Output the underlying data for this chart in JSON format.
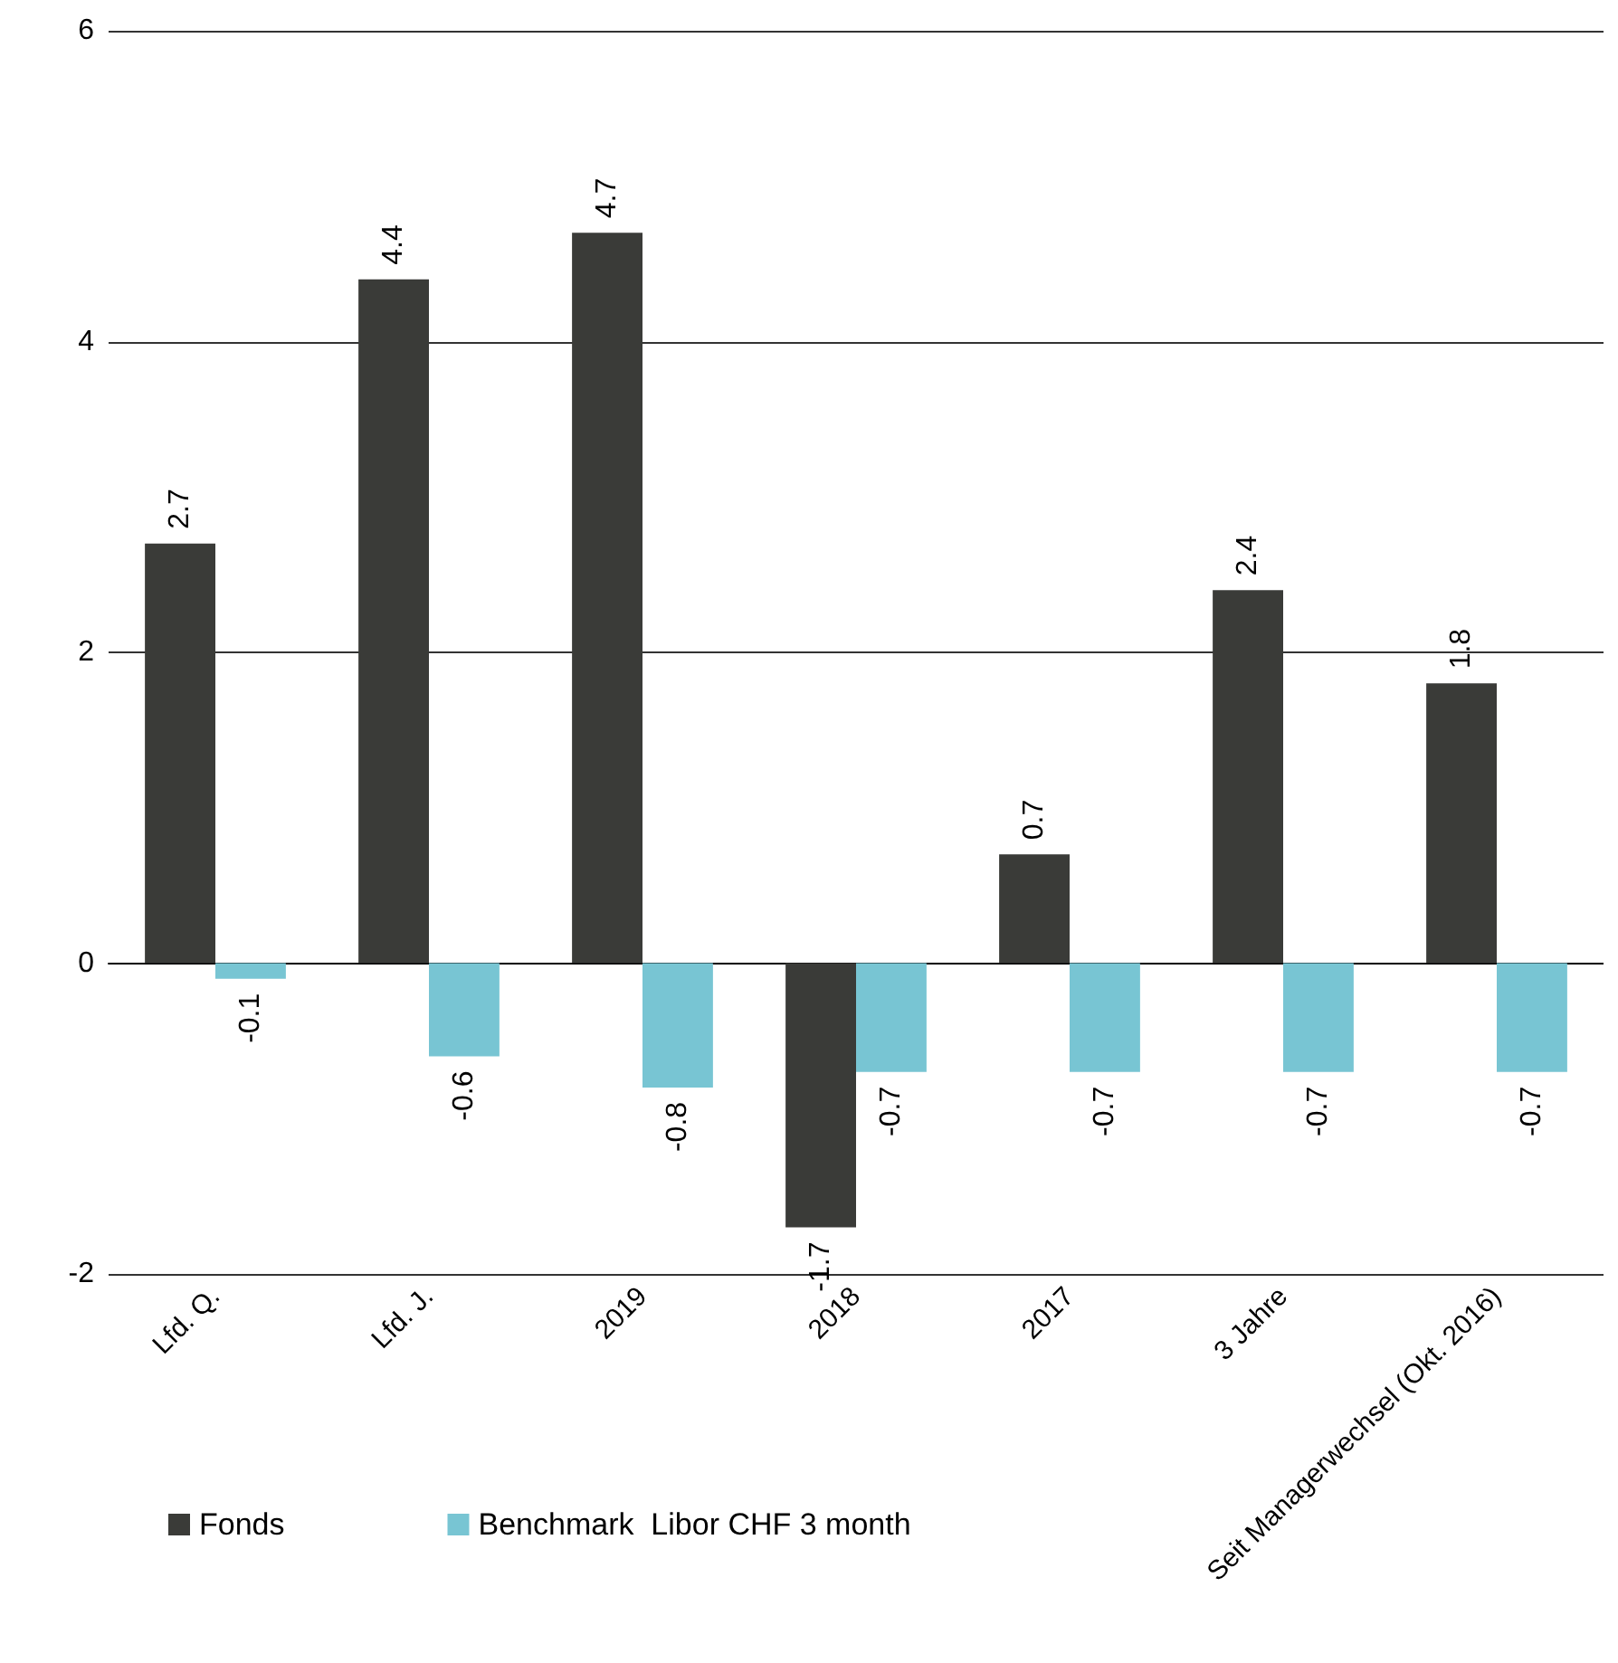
{
  "chart_data": {
    "type": "bar",
    "categories": [
      "Lfd. Q.",
      "Lfd. J.",
      "2019",
      "2018",
      "2017",
      "3 Jahre",
      "Seit Managerwechsel (Okt. 2016)"
    ],
    "series": [
      {
        "name": "Fonds",
        "color": "#3a3b38",
        "values": [
          2.7,
          4.4,
          4.7,
          -1.7,
          0.7,
          2.4,
          1.8
        ]
      },
      {
        "name": "Benchmark  Libor CHF 3 month",
        "color": "#78c5d3",
        "values": [
          -0.1,
          -0.6,
          -0.8,
          -0.7,
          -0.7,
          -0.7,
          -0.7
        ]
      }
    ],
    "ylim": [
      -2,
      6
    ],
    "yticks": [
      -2,
      0,
      2,
      4,
      6
    ],
    "grid": "y",
    "legend": "bottom left",
    "data_labels": true
  }
}
